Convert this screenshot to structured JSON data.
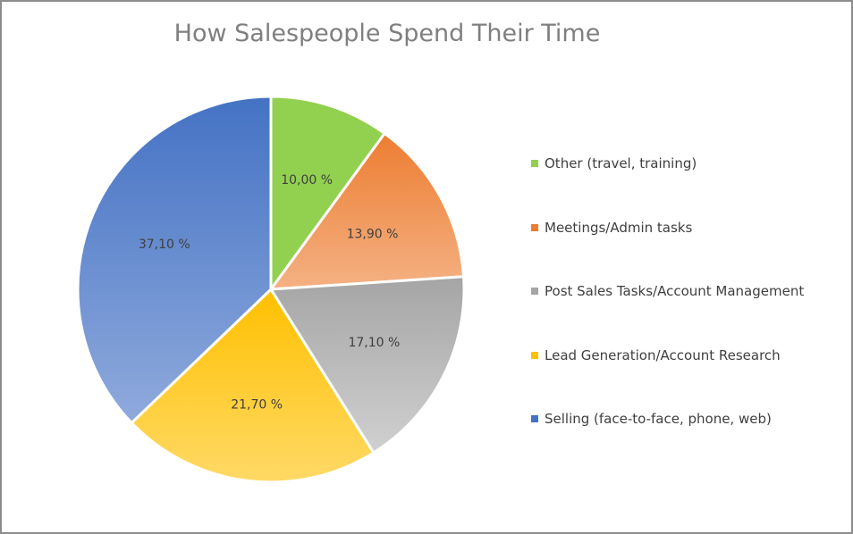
{
  "chart_data": {
    "type": "pie",
    "title": "How Salespeople Spend Their Time",
    "legend_position": "right",
    "slices": [
      {
        "name": "Other (travel, training)",
        "value": 10.0,
        "label": "10,00 %",
        "color": "#92d050",
        "color_light": "#92d050"
      },
      {
        "name": "Meetings/Admin tasks",
        "value": 13.9,
        "label": "13,90 %",
        "color": "#ed7d31",
        "color_light": "#f4b183"
      },
      {
        "name": "Post Sales Tasks/Account Management",
        "value": 17.1,
        "label": "17,10 %",
        "color": "#a5a5a5",
        "color_light": "#d0d0d0"
      },
      {
        "name": "Lead Generation/Account Research",
        "value": 21.7,
        "label": "21,70 %",
        "color": "#ffc000",
        "color_light": "#ffd966"
      },
      {
        "name": "Selling (face-to-face, phone, web)",
        "value": 37.1,
        "label": "37,10 %",
        "color": "#4472c4",
        "color_light": "#8faadc"
      }
    ]
  }
}
